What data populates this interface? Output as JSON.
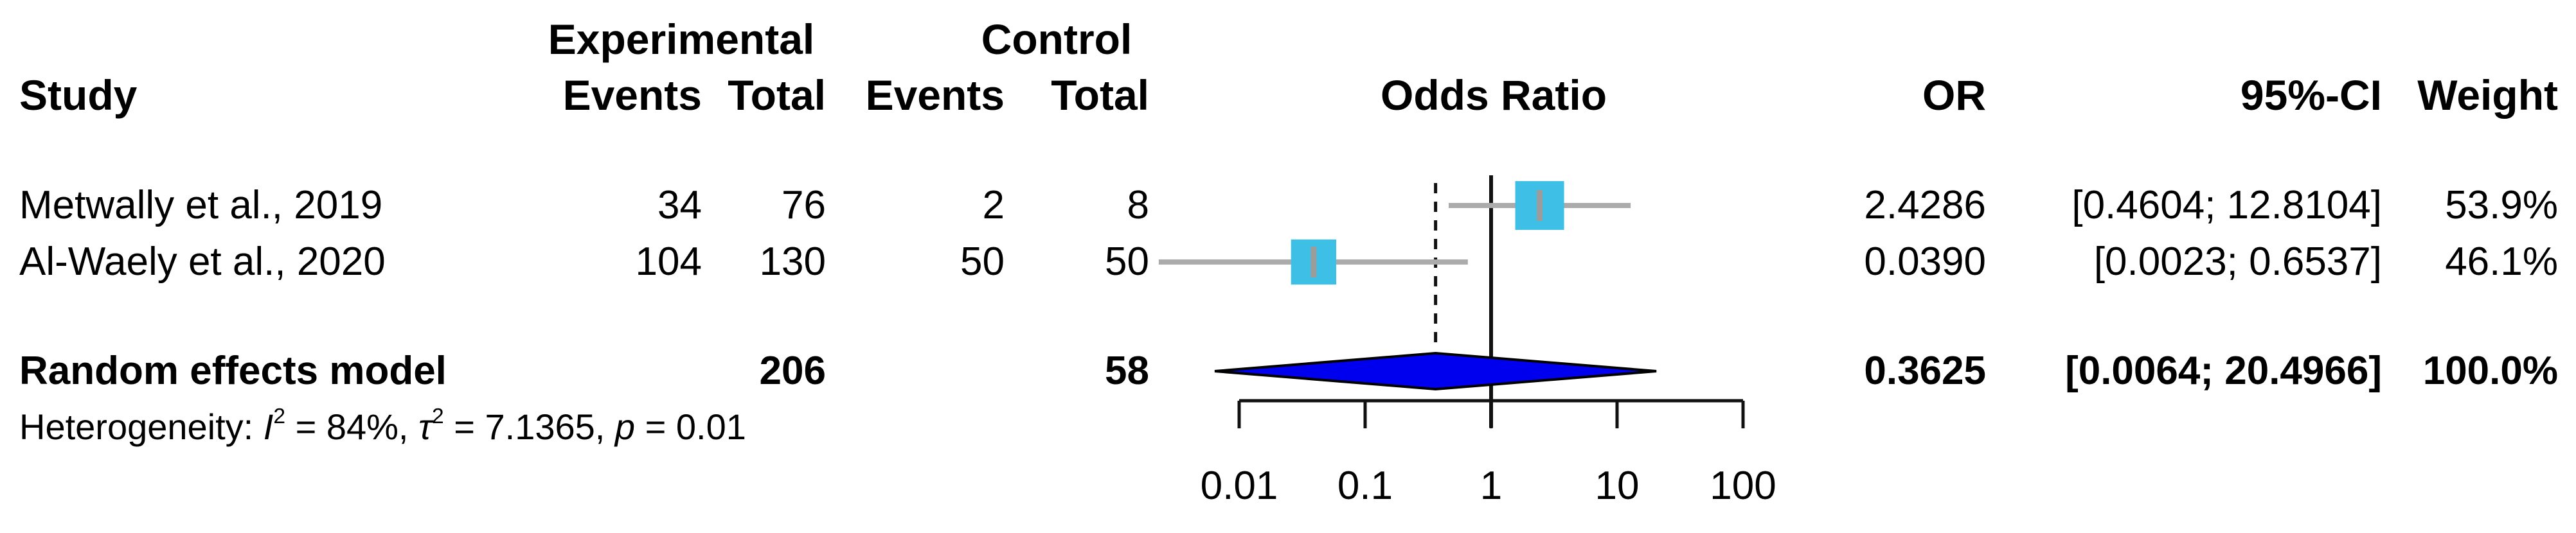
{
  "header": {
    "study": "Study",
    "group_experimental": "Experimental",
    "group_control": "Control",
    "exp_events": "Events",
    "exp_total": "Total",
    "ctrl_events": "Events",
    "ctrl_total": "Total",
    "odds_ratio": "Odds Ratio",
    "or": "OR",
    "ci": "95%-CI",
    "weight": "Weight"
  },
  "chart_data": {
    "type": "forest",
    "effect_measure": "Odds Ratio",
    "scale": "log10",
    "colors": {
      "square": "#3EC0E6",
      "diamond": "#0000EE",
      "ci_line": "#ABABAB",
      "marker": "#9C9C9C",
      "axis": "#111111",
      "text": "#000000"
    },
    "axis": {
      "ticks": [
        "0.01",
        "0.1",
        "1",
        "10",
        "100"
      ],
      "min": 0.01,
      "max": 100,
      "ref_line": 1,
      "pooled_line": 0.3625
    },
    "studies": [
      {
        "study": "Metwally et al., 2019",
        "exp_events": "34",
        "exp_total": "76",
        "ctrl_events": "2",
        "ctrl_total": "8",
        "or": 2.4286,
        "ci_low": 0.4604,
        "ci_high": 12.8104,
        "or_label": "2.4286",
        "ci_label": "[0.4604; 12.8104]",
        "weight": 53.9,
        "weight_label": "53.9%"
      },
      {
        "study": "Al-Waely et al., 2020",
        "exp_events": "104",
        "exp_total": "130",
        "ctrl_events": "50",
        "ctrl_total": "50",
        "or": 0.039,
        "ci_low": 0.0023,
        "ci_high": 0.6537,
        "or_label": "0.0390",
        "ci_label": "[0.0023; 0.6537]",
        "weight": 46.1,
        "weight_label": "46.1%"
      }
    ],
    "summary": {
      "label": "Random effects model",
      "exp_total": "206",
      "ctrl_total": "58",
      "or": 0.3625,
      "ci_low": 0.0064,
      "ci_high": 20.4966,
      "or_label": "0.3625",
      "ci_label": "[0.0064; 20.4966]",
      "weight_label": "100.0%"
    },
    "heterogeneity": {
      "prefix": "Heterogeneity: ",
      "i": "I",
      "i_sup": "2",
      "i_rest": " = 84%, ",
      "tau": "τ",
      "tau_sup": "2",
      "tau_rest": " = 7.1365, ",
      "p": "p",
      "p_rest": " = 0.01"
    }
  }
}
